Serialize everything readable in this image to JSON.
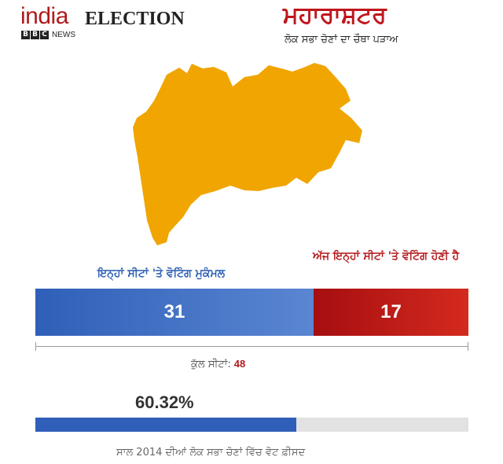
{
  "header": {
    "logo_india": "india",
    "logo_election": "ELECTION",
    "logo_bbc": [
      "B",
      "B",
      "C"
    ],
    "logo_news": "NEWS",
    "title": "ਮਹਾਰਾਸ਼ਟਰ",
    "subtitle": "ਲੋਕ ਸਭਾ ਚੋਣਾਂ ਦਾ ਚੌਥਾ ਪੜਾਅ"
  },
  "map": {
    "region": "Maharashtra",
    "fill_color": "#f0a500"
  },
  "seats": {
    "completed_label": "ਇਨ੍ਹਾਂ ਸੀਟਾਂ 'ਤੇ ਵੋਟਿੰਗ ਮੁਕੰਮਲ",
    "completed_value": "31",
    "today_label": "ਅੱਜ ਇਨ੍ਹਾਂ ਸੀਟਾਂ 'ਤੇ ਵੋਟਿੰਗ ਹੋਣੀ ਹੈ",
    "today_value": "17",
    "total_label": "ਕੁੱਲ ਸੀਟਾਂ:",
    "total_value": "48",
    "completed_color": "#2f5fb8",
    "today_color": "#b3191c"
  },
  "turnout": {
    "percent_text": "60.32%",
    "fraction": 0.6032,
    "caption": "ਸਾਲ 2014 ਦੀਆਂ ਲੋਕ ਸਭਾ ਚੋਣਾਂ ਵਿੱਚ ਵੋਟ ਫ਼ੀਸਦ"
  }
}
